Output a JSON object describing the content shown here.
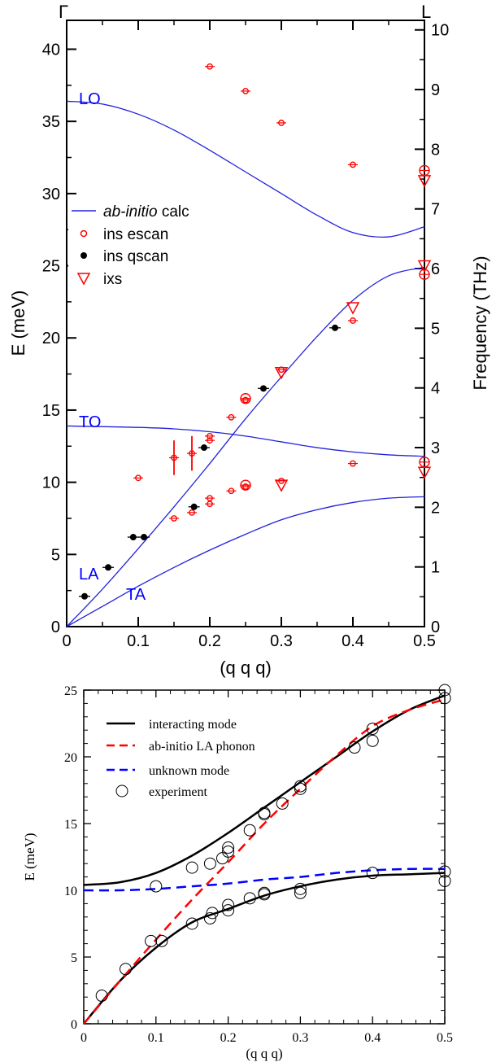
{
  "colors": {
    "blue": "#0000ff",
    "red": "#ff0000",
    "black": "#000000",
    "calc_blue": "#2222dd"
  },
  "chart_data": [
    {
      "type": "line",
      "title": "",
      "xlabel": "(q q q)",
      "ylabel": "E (meV)",
      "ylabel_right": "Frequency (THz)",
      "xlim": [
        0,
        0.5
      ],
      "ylim": [
        0,
        42
      ],
      "ylim_right": [
        0,
        10.16
      ],
      "xticks": [
        0,
        0.1,
        0.2,
        0.3,
        0.4,
        0.5
      ],
      "xtick_labels": [
        "0",
        "0.1",
        "0.2",
        "0.3",
        "0.4",
        "0.5"
      ],
      "yticks": [
        0,
        5,
        10,
        15,
        20,
        25,
        30,
        35,
        40
      ],
      "ytick_labels": [
        "0",
        "5",
        "10",
        "15",
        "20",
        "25",
        "30",
        "35",
        "40"
      ],
      "yticks_right": [
        0,
        1,
        2,
        3,
        4,
        5,
        6,
        7,
        8,
        9,
        10
      ],
      "ytick_labels_right": [
        "0",
        "1",
        "2",
        "3",
        "4",
        "5",
        "6",
        "7",
        "8",
        "9",
        "10"
      ],
      "top_labels": [
        "Γ",
        "L"
      ],
      "legend": {
        "position": "left",
        "entries": [
          {
            "italic": "ab-initio",
            "text": " calc"
          },
          {
            "text": "ins escan"
          },
          {
            "text": "ins qscan"
          },
          {
            "text": "ixs"
          }
        ]
      },
      "branch_labels": [
        "LO",
        "TO",
        "LA",
        "TA"
      ],
      "series": [
        {
          "kind": "calc",
          "branch": "LO",
          "x": [
            0,
            0.05,
            0.1,
            0.15,
            0.2,
            0.25,
            0.3,
            0.35,
            0.4,
            0.45,
            0.5
          ],
          "y": [
            36.4,
            36.2,
            35.5,
            34.4,
            33.0,
            31.5,
            30.0,
            28.5,
            27.3,
            27.0,
            27.7
          ]
        },
        {
          "kind": "calc",
          "branch": "TO",
          "x": [
            0,
            0.1,
            0.15,
            0.2,
            0.25,
            0.3,
            0.35,
            0.4,
            0.45,
            0.5
          ],
          "y": [
            13.9,
            13.8,
            13.7,
            13.5,
            13.2,
            12.8,
            12.4,
            12.1,
            11.9,
            11.8
          ]
        },
        {
          "kind": "calc",
          "branch": "LA",
          "x": [
            0,
            0.05,
            0.1,
            0.15,
            0.2,
            0.25,
            0.3,
            0.35,
            0.4,
            0.45,
            0.5
          ],
          "y": [
            0,
            2.6,
            5.4,
            8.3,
            11.3,
            14.4,
            17.3,
            20.1,
            22.6,
            24.3,
            24.9
          ]
        },
        {
          "kind": "calc",
          "branch": "TA",
          "x": [
            0,
            0.05,
            0.1,
            0.15,
            0.2,
            0.25,
            0.3,
            0.35,
            0.4,
            0.45,
            0.5
          ],
          "y": [
            0,
            1.4,
            2.8,
            4.1,
            5.3,
            6.4,
            7.4,
            8.1,
            8.6,
            8.9,
            9.0
          ]
        },
        {
          "kind": "escan",
          "name": "ins escan",
          "points": [
            [
              0.2,
              38.8
            ],
            [
              0.25,
              37.1
            ],
            [
              0.3,
              34.9
            ],
            [
              0.4,
              32.0
            ],
            [
              0.5,
              31.6
            ],
            [
              0.4,
              21.2
            ],
            [
              0.3,
              17.8
            ],
            [
              0.25,
              15.7
            ],
            [
              0.25,
              15.8
            ],
            [
              0.23,
              14.5
            ],
            [
              0.2,
              13.2
            ],
            [
              0.2,
              12.9
            ],
            [
              0.1,
              10.3
            ],
            [
              0.2,
              8.9
            ],
            [
              0.2,
              8.5
            ],
            [
              0.175,
              7.9
            ],
            [
              0.15,
              7.5
            ],
            [
              0.23,
              9.4
            ],
            [
              0.25,
              9.7
            ],
            [
              0.25,
              9.8
            ],
            [
              0.3,
              10.1
            ],
            [
              0.4,
              11.3
            ],
            [
              0.5,
              11.4
            ],
            [
              0.5,
              24.4
            ],
            [
              0.15,
              11.7
            ],
            [
              0.175,
              12.0
            ]
          ]
        },
        {
          "kind": "qscan",
          "name": "ins qscan",
          "points": [
            [
              0.025,
              2.1
            ],
            [
              0.058,
              4.1
            ],
            [
              0.093,
              6.2
            ],
            [
              0.108,
              6.2
            ],
            [
              0.178,
              8.3
            ],
            [
              0.192,
              12.4
            ],
            [
              0.275,
              16.5
            ],
            [
              0.375,
              20.7
            ]
          ]
        },
        {
          "kind": "ixs",
          "name": "ixs",
          "points": [
            [
              0.5,
              30.9
            ],
            [
              0.5,
              25.0
            ],
            [
              0.4,
              22.1
            ],
            [
              0.3,
              17.6
            ],
            [
              0.3,
              9.8
            ],
            [
              0.5,
              10.7
            ]
          ]
        }
      ]
    },
    {
      "type": "line",
      "title": "",
      "xlabel": "(q q q)",
      "ylabel": "E (meV)",
      "xlim": [
        0,
        0.5
      ],
      "ylim": [
        0,
        25
      ],
      "xticks": [
        0,
        0.1,
        0.2,
        0.3,
        0.4,
        0.5
      ],
      "xtick_labels": [
        "0",
        "0.1",
        "0.2",
        "0.3",
        "0.4",
        "0.5"
      ],
      "yticks": [
        0,
        5,
        10,
        15,
        20,
        25
      ],
      "ytick_labels": [
        "0",
        "5",
        "10",
        "15",
        "20",
        "25"
      ],
      "legend": {
        "position": "top-left",
        "entries": [
          "interacting mode",
          "ab-initio LA phonon",
          "unknown mode",
          "experiment"
        ]
      },
      "series": [
        {
          "name": "interacting mode",
          "style": "solid-black",
          "x": [
            0,
            0.05,
            0.1,
            0.15,
            0.2,
            0.25,
            0.3,
            0.35,
            0.4,
            0.45,
            0.5
          ],
          "y": [
            10.4,
            10.6,
            11.3,
            12.6,
            14.3,
            16.2,
            18.1,
            20.0,
            21.9,
            23.5,
            24.6
          ]
        },
        {
          "name": "interacting mode",
          "style": "solid-black",
          "x": [
            0,
            0.05,
            0.1,
            0.15,
            0.2,
            0.25,
            0.3,
            0.35,
            0.4,
            0.45,
            0.5
          ],
          "y": [
            0,
            3.2,
            5.7,
            7.6,
            8.6,
            9.6,
            10.3,
            10.8,
            11.1,
            11.2,
            11.3
          ]
        },
        {
          "name": "ab-initio LA phonon",
          "style": "dashed-red",
          "x": [
            0,
            0.05,
            0.1,
            0.15,
            0.2,
            0.25,
            0.3,
            0.35,
            0.4,
            0.45,
            0.5
          ],
          "y": [
            0,
            3.2,
            6.3,
            9.3,
            12.1,
            15.0,
            17.6,
            20.1,
            22.3,
            23.5,
            24.3
          ]
        },
        {
          "name": "unknown mode",
          "style": "dashed-blue",
          "x": [
            0,
            0.05,
            0.1,
            0.15,
            0.2,
            0.25,
            0.3,
            0.35,
            0.4,
            0.45,
            0.5
          ],
          "y": [
            10.0,
            10.0,
            10.1,
            10.3,
            10.5,
            10.8,
            11.0,
            11.3,
            11.5,
            11.6,
            11.6
          ]
        },
        {
          "name": "experiment",
          "style": "open-circle",
          "points": [
            [
              0.025,
              2.1
            ],
            [
              0.058,
              4.1
            ],
            [
              0.093,
              6.2
            ],
            [
              0.108,
              6.2
            ],
            [
              0.15,
              7.5
            ],
            [
              0.175,
              7.9
            ],
            [
              0.178,
              8.3
            ],
            [
              0.2,
              8.5
            ],
            [
              0.2,
              8.9
            ],
            [
              0.23,
              9.4
            ],
            [
              0.25,
              9.7
            ],
            [
              0.25,
              9.8
            ],
            [
              0.3,
              9.8
            ],
            [
              0.3,
              10.1
            ],
            [
              0.4,
              11.3
            ],
            [
              0.5,
              10.7
            ],
            [
              0.5,
              11.4
            ],
            [
              0.1,
              10.3
            ],
            [
              0.15,
              11.7
            ],
            [
              0.175,
              12.0
            ],
            [
              0.192,
              12.4
            ],
            [
              0.2,
              12.9
            ],
            [
              0.2,
              13.2
            ],
            [
              0.23,
              14.5
            ],
            [
              0.25,
              15.7
            ],
            [
              0.25,
              15.8
            ],
            [
              0.275,
              16.5
            ],
            [
              0.3,
              17.6
            ],
            [
              0.3,
              17.8
            ],
            [
              0.375,
              20.7
            ],
            [
              0.4,
              21.2
            ],
            [
              0.4,
              22.1
            ],
            [
              0.5,
              24.4
            ],
            [
              0.5,
              25.0
            ]
          ]
        }
      ]
    }
  ]
}
